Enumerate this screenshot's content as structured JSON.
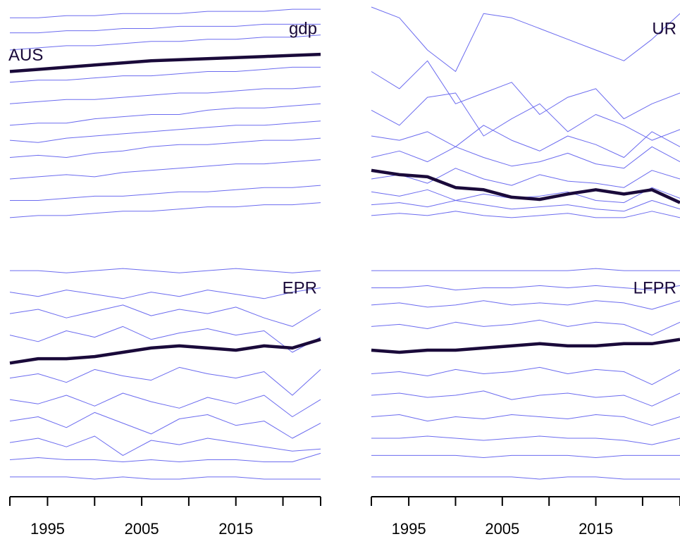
{
  "chart_data": [
    {
      "type": "line",
      "title": "gdp",
      "x": [
        1991,
        1994,
        1997,
        2000,
        2003,
        2006,
        2009,
        2012,
        2015,
        2018,
        2021,
        2024
      ],
      "xlim": [
        1991,
        2024
      ],
      "ylim": [
        0,
        100
      ],
      "color": "#6b6bef",
      "series": [
        {
          "name": "AUS",
          "highlight": true,
          "color": "#1a0a3a",
          "values": [
            70,
            71,
            72,
            73,
            74,
            75,
            75.5,
            76,
            76.5,
            77,
            77.5,
            78
          ]
        },
        {
          "values": [
            95,
            95,
            96,
            96,
            97,
            97,
            97,
            98,
            98,
            98,
            99,
            99
          ]
        },
        {
          "values": [
            88,
            88,
            89,
            89,
            90,
            90,
            91,
            91,
            91,
            92,
            92,
            92
          ]
        },
        {
          "values": [
            80,
            81,
            82,
            82,
            83,
            84,
            84,
            85,
            85,
            86,
            86,
            87
          ]
        },
        {
          "values": [
            65,
            66,
            66,
            67,
            68,
            68,
            69,
            70,
            70,
            71,
            72,
            72
          ]
        },
        {
          "values": [
            55,
            56,
            57,
            57,
            58,
            59,
            60,
            60,
            61,
            62,
            62,
            63
          ]
        },
        {
          "values": [
            45,
            46,
            46,
            48,
            49,
            50,
            50,
            52,
            53,
            53,
            54,
            55
          ]
        },
        {
          "values": [
            38,
            37,
            39,
            40,
            41,
            42,
            43,
            44,
            45,
            45,
            46,
            47
          ]
        },
        {
          "values": [
            30,
            31,
            30,
            32,
            33,
            35,
            36,
            36,
            37,
            38,
            38,
            39
          ]
        },
        {
          "values": [
            20,
            21,
            22,
            21,
            23,
            24,
            25,
            26,
            27,
            27,
            28,
            29
          ]
        },
        {
          "values": [
            10,
            10,
            11,
            12,
            12,
            13,
            14,
            14,
            15,
            16,
            16,
            17
          ]
        },
        {
          "values": [
            2,
            3,
            3,
            4,
            5,
            5,
            6,
            7,
            7,
            8,
            8,
            9
          ]
        }
      ]
    },
    {
      "type": "line",
      "title": "UR",
      "x": [
        1991,
        1994,
        1997,
        2000,
        2003,
        2006,
        2009,
        2012,
        2015,
        2018,
        2021,
        2024
      ],
      "xlim": [
        1991,
        2024
      ],
      "ylim": [
        0,
        100
      ],
      "color": "#6b6bef",
      "series": [
        {
          "highlight": true,
          "color": "#1a0a3a",
          "values": [
            24,
            22,
            21,
            16,
            15,
            11.5,
            10.5,
            13,
            15,
            13,
            15,
            9
          ]
        },
        {
          "values": [
            100,
            95,
            80,
            70,
            97,
            95,
            90,
            85,
            80,
            75,
            85,
            97
          ]
        },
        {
          "values": [
            70,
            62,
            75,
            55,
            60,
            65,
            50,
            58,
            62,
            48,
            55,
            60
          ]
        },
        {
          "values": [
            52,
            45,
            58,
            60,
            40,
            48,
            55,
            42,
            50,
            45,
            38,
            43
          ]
        },
        {
          "values": [
            40,
            38,
            42,
            35,
            45,
            38,
            33,
            40,
            36,
            30,
            42,
            35
          ]
        },
        {
          "values": [
            30,
            33,
            28,
            35,
            30,
            26,
            28,
            32,
            27,
            25,
            35,
            28
          ]
        },
        {
          "values": [
            20,
            22,
            18,
            25,
            20,
            17,
            22,
            19,
            18,
            16,
            24,
            20
          ]
        },
        {
          "values": [
            14,
            12,
            15,
            10,
            13,
            11,
            12,
            14,
            10,
            9,
            16,
            11
          ]
        },
        {
          "values": [
            8,
            9,
            7,
            10,
            8,
            6,
            7,
            8,
            6,
            5,
            10,
            6
          ]
        },
        {
          "values": [
            3,
            4,
            3,
            5,
            3,
            2,
            3,
            4,
            2,
            2,
            5,
            2
          ]
        }
      ]
    },
    {
      "type": "line",
      "title": "EPR",
      "x": [
        1991,
        1994,
        1997,
        2000,
        2003,
        2006,
        2009,
        2012,
        2015,
        2018,
        2021,
        2024
      ],
      "xlim": [
        1991,
        2024
      ],
      "ylim": [
        0,
        100
      ],
      "color": "#6b6bef",
      "xticks": [
        {
          "value": 1991,
          "label": null
        },
        1995,
        {
          "value": 2000,
          "label": null
        },
        2005,
        {
          "value": 2010,
          "label": null
        },
        2015,
        {
          "value": 2020,
          "label": null
        },
        {
          "value": 2024,
          "label": null
        }
      ],
      "series": [
        {
          "highlight": true,
          "color": "#1a0a3a",
          "values": [
            55,
            57,
            57,
            58,
            60,
            62,
            63,
            62,
            61,
            63,
            62,
            66
          ]
        },
        {
          "values": [
            98,
            98,
            97,
            98,
            99,
            98,
            97,
            98,
            99,
            98,
            97,
            98
          ]
        },
        {
          "values": [
            88,
            86,
            89,
            87,
            85,
            88,
            86,
            89,
            87,
            85,
            88,
            90
          ]
        },
        {
          "values": [
            78,
            80,
            76,
            79,
            82,
            77,
            80,
            78,
            81,
            76,
            72,
            80
          ]
        },
        {
          "values": [
            68,
            65,
            70,
            67,
            72,
            66,
            69,
            71,
            68,
            70,
            60,
            67
          ]
        },
        {
          "values": [
            48,
            50,
            46,
            52,
            49,
            47,
            53,
            50,
            48,
            51,
            40,
            52
          ]
        },
        {
          "values": [
            38,
            36,
            40,
            35,
            41,
            37,
            34,
            39,
            36,
            40,
            30,
            38
          ]
        },
        {
          "values": [
            28,
            30,
            25,
            32,
            27,
            22,
            29,
            31,
            26,
            28,
            20,
            27
          ]
        },
        {
          "values": [
            18,
            20,
            16,
            21,
            12,
            19,
            17,
            20,
            18,
            16,
            14,
            15
          ]
        },
        {
          "values": [
            10,
            11,
            10,
            10,
            9,
            10,
            9,
            10,
            10,
            9,
            9,
            13
          ]
        },
        {
          "values": [
            2,
            2,
            2,
            1,
            2,
            1,
            1,
            2,
            2,
            1,
            1,
            1
          ]
        }
      ]
    },
    {
      "type": "line",
      "title": "LFPR",
      "x": [
        1991,
        1994,
        1997,
        2000,
        2003,
        2006,
        2009,
        2012,
        2015,
        2018,
        2021,
        2024
      ],
      "xlim": [
        1991,
        2024
      ],
      "ylim": [
        0,
        100
      ],
      "color": "#6b6bef",
      "xticks": [
        {
          "value": 1991,
          "label": null
        },
        1995,
        {
          "value": 2000,
          "label": null
        },
        2005,
        {
          "value": 2010,
          "label": null
        },
        2015,
        {
          "value": 2020,
          "label": null
        },
        {
          "value": 2024,
          "label": null
        }
      ],
      "series": [
        {
          "highlight": true,
          "color": "#1a0a3a",
          "values": [
            61,
            60,
            61,
            61,
            62,
            63,
            64,
            63,
            63,
            64,
            64,
            66
          ]
        },
        {
          "values": [
            98,
            98,
            98,
            98,
            98,
            98,
            98,
            98,
            99,
            98,
            98,
            98
          ]
        },
        {
          "values": [
            90,
            90,
            91,
            89,
            90,
            90,
            91,
            90,
            91,
            90,
            89,
            91
          ]
        },
        {
          "values": [
            82,
            83,
            81,
            82,
            84,
            82,
            83,
            82,
            84,
            83,
            80,
            84
          ]
        },
        {
          "values": [
            72,
            73,
            71,
            74,
            72,
            73,
            75,
            72,
            74,
            73,
            68,
            74
          ]
        },
        {
          "values": [
            50,
            51,
            49,
            52,
            50,
            51,
            53,
            50,
            52,
            51,
            45,
            52
          ]
        },
        {
          "values": [
            40,
            41,
            39,
            40,
            42,
            38,
            40,
            41,
            39,
            40,
            35,
            41
          ]
        },
        {
          "values": [
            30,
            31,
            28,
            30,
            29,
            31,
            30,
            29,
            31,
            30,
            26,
            30
          ]
        },
        {
          "values": [
            20,
            20,
            21,
            20,
            19,
            20,
            21,
            20,
            20,
            19,
            17,
            20
          ]
        },
        {
          "values": [
            12,
            12,
            12,
            12,
            11,
            12,
            12,
            12,
            11,
            12,
            12,
            12
          ]
        },
        {
          "values": [
            2,
            2,
            2,
            2,
            2,
            2,
            1,
            2,
            2,
            1,
            1,
            1
          ]
        }
      ]
    }
  ]
}
